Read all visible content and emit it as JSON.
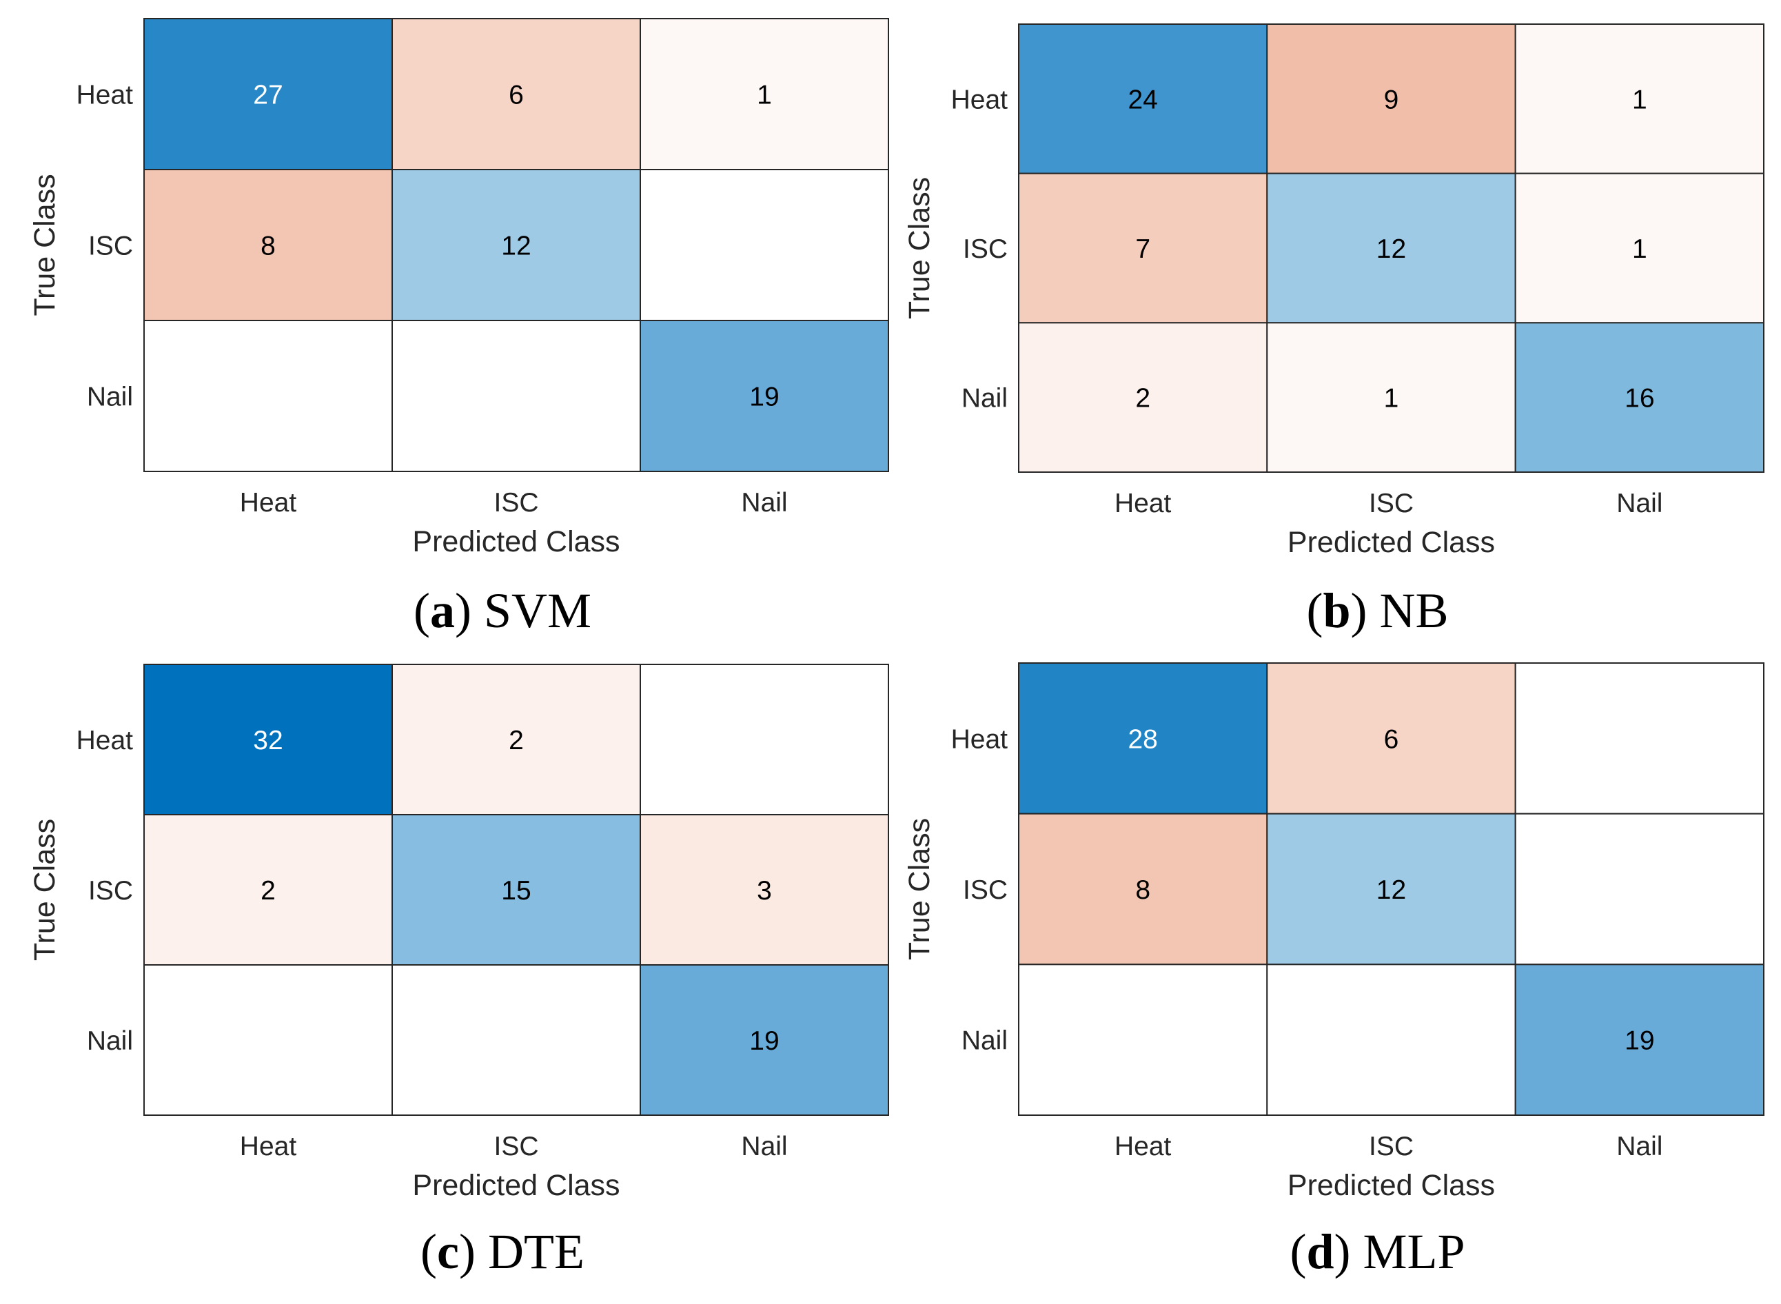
{
  "chart_data": [
    {
      "type": "heatmap",
      "subtype": "confusion-matrix",
      "caption_letter": "a",
      "caption_name": "SVM",
      "row_labels": [
        "Heat",
        "ISC",
        "Nail"
      ],
      "col_labels": [
        "Heat",
        "ISC",
        "Nail"
      ],
      "xlabel": "Predicted Class",
      "ylabel": "True Class",
      "values": [
        [
          27,
          6,
          1
        ],
        [
          8,
          12,
          null
        ],
        [
          null,
          null,
          19
        ]
      ]
    },
    {
      "type": "heatmap",
      "subtype": "confusion-matrix",
      "caption_letter": "b",
      "caption_name": "NB",
      "row_labels": [
        "Heat",
        "ISC",
        "Nail"
      ],
      "col_labels": [
        "Heat",
        "ISC",
        "Nail"
      ],
      "xlabel": "Predicted Class",
      "ylabel": "True Class",
      "values": [
        [
          24,
          9,
          1
        ],
        [
          7,
          12,
          1
        ],
        [
          2,
          1,
          16
        ]
      ]
    },
    {
      "type": "heatmap",
      "subtype": "confusion-matrix",
      "caption_letter": "c",
      "caption_name": "DTE",
      "row_labels": [
        "Heat",
        "ISC",
        "Nail"
      ],
      "col_labels": [
        "Heat",
        "ISC",
        "Nail"
      ],
      "xlabel": "Predicted Class",
      "ylabel": "True Class",
      "values": [
        [
          32,
          2,
          null
        ],
        [
          2,
          15,
          3
        ],
        [
          null,
          null,
          19
        ]
      ]
    },
    {
      "type": "heatmap",
      "subtype": "confusion-matrix",
      "caption_letter": "d",
      "caption_name": "MLP",
      "row_labels": [
        "Heat",
        "ISC",
        "Nail"
      ],
      "col_labels": [
        "Heat",
        "ISC",
        "Nail"
      ],
      "xlabel": "Predicted Class",
      "ylabel": "True Class",
      "values": [
        [
          28,
          6,
          null
        ],
        [
          8,
          12,
          null
        ],
        [
          null,
          null,
          19
        ]
      ]
    }
  ],
  "colors": {
    "diag_high": "#0072BD",
    "diag_low": "#FFFFFF",
    "off_high": "#D95319",
    "off_low": "#FFFFFF",
    "grid": "#262626",
    "text_dark": "#000000",
    "text_light": "#FFFFFF"
  }
}
